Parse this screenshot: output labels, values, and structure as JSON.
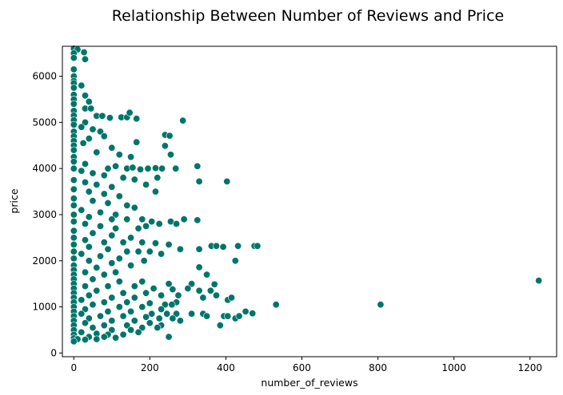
{
  "chart_data": {
    "type": "scatter",
    "title": "Relationship Between Number of Reviews and Price",
    "xlabel": "number_of_reviews",
    "ylabel": "price",
    "xlim": [
      -30,
      1270
    ],
    "ylim": [
      -80,
      6650
    ],
    "xticks": [
      0,
      200,
      400,
      600,
      800,
      1000,
      1200
    ],
    "yticks": [
      0,
      1000,
      2000,
      3000,
      4000,
      5000,
      6000
    ],
    "grid": false,
    "marker_color": "#00756a",
    "marker_edge_color": "#ffffff",
    "series": [
      {
        "points": [
          [
            0,
            6600
          ],
          [
            10,
            6580
          ],
          [
            0,
            6500
          ],
          [
            27,
            6520
          ],
          [
            0,
            6400
          ],
          [
            30,
            6370
          ],
          [
            0,
            6150
          ],
          [
            0,
            6000
          ],
          [
            0,
            5900
          ],
          [
            0,
            5850
          ],
          [
            0,
            5750
          ],
          [
            20,
            5800
          ],
          [
            0,
            5600
          ],
          [
            30,
            5580
          ],
          [
            0,
            5500
          ],
          [
            40,
            5450
          ],
          [
            0,
            5400
          ],
          [
            30,
            5300
          ],
          [
            0,
            5250
          ],
          [
            45,
            5300
          ],
          [
            0,
            5150
          ],
          [
            60,
            5140
          ],
          [
            75,
            5140
          ],
          [
            95,
            5100
          ],
          [
            125,
            5110
          ],
          [
            140,
            5110
          ],
          [
            147,
            5210
          ],
          [
            165,
            5080
          ],
          [
            287,
            5040
          ],
          [
            0,
            5050
          ],
          [
            30,
            5000
          ],
          [
            0,
            4950
          ],
          [
            20,
            4900
          ],
          [
            50,
            4850
          ],
          [
            70,
            4800
          ],
          [
            0,
            4800
          ],
          [
            0,
            4700
          ],
          [
            40,
            4650
          ],
          [
            80,
            4700
          ],
          [
            0,
            4600
          ],
          [
            25,
            4550
          ],
          [
            165,
            4570
          ],
          [
            240,
            4730
          ],
          [
            252,
            4710
          ],
          [
            240,
            4490
          ],
          [
            0,
            4500
          ],
          [
            100,
            4450
          ],
          [
            255,
            4300
          ],
          [
            0,
            4400
          ],
          [
            60,
            4350
          ],
          [
            0,
            4250
          ],
          [
            120,
            4300
          ],
          [
            150,
            4250
          ],
          [
            0,
            4150
          ],
          [
            30,
            4100
          ],
          [
            90,
            4000
          ],
          [
            110,
            4050
          ],
          [
            140,
            4000
          ],
          [
            155,
            4020
          ],
          [
            175,
            3980
          ],
          [
            195,
            4000
          ],
          [
            215,
            4010
          ],
          [
            232,
            4000
          ],
          [
            268,
            4000
          ],
          [
            325,
            4050
          ],
          [
            330,
            3720
          ],
          [
            403,
            3720
          ],
          [
            0,
            4000
          ],
          [
            20,
            3950
          ],
          [
            50,
            3900
          ],
          [
            80,
            3850
          ],
          [
            130,
            3800
          ],
          [
            160,
            3760
          ],
          [
            190,
            3650
          ],
          [
            220,
            3800
          ],
          [
            215,
            3500
          ],
          [
            0,
            3750
          ],
          [
            30,
            3700
          ],
          [
            60,
            3650
          ],
          [
            100,
            3600
          ],
          [
            0,
            3550
          ],
          [
            40,
            3500
          ],
          [
            80,
            3450
          ],
          [
            120,
            3400
          ],
          [
            0,
            3350
          ],
          [
            50,
            3300
          ],
          [
            90,
            3250
          ],
          [
            140,
            3200
          ],
          [
            160,
            3150
          ],
          [
            0,
            3200
          ],
          [
            20,
            3100
          ],
          [
            70,
            3050
          ],
          [
            110,
            3000
          ],
          [
            0,
            3000
          ],
          [
            40,
            2950
          ],
          [
            100,
            2900
          ],
          [
            140,
            2900
          ],
          [
            180,
            2900
          ],
          [
            205,
            2850
          ],
          [
            225,
            2800
          ],
          [
            255,
            2850
          ],
          [
            270,
            2800
          ],
          [
            290,
            2900
          ],
          [
            325,
            2880
          ],
          [
            0,
            2850
          ],
          [
            30,
            2800
          ],
          [
            70,
            2750
          ],
          [
            110,
            2700
          ],
          [
            170,
            2700
          ],
          [
            190,
            2750
          ],
          [
            0,
            2650
          ],
          [
            50,
            2600
          ],
          [
            100,
            2550
          ],
          [
            150,
            2500
          ],
          [
            0,
            2500
          ],
          [
            30,
            2450
          ],
          [
            80,
            2400
          ],
          [
            130,
            2400
          ],
          [
            180,
            2400
          ],
          [
            215,
            2380
          ],
          [
            250,
            2350
          ],
          [
            280,
            2250
          ],
          [
            330,
            2250
          ],
          [
            362,
            2320
          ],
          [
            375,
            2320
          ],
          [
            393,
            2300
          ],
          [
            432,
            2320
          ],
          [
            475,
            2320
          ],
          [
            483,
            2320
          ],
          [
            0,
            2350
          ],
          [
            40,
            2300
          ],
          [
            90,
            2250
          ],
          [
            140,
            2200
          ],
          [
            170,
            2200
          ],
          [
            200,
            2200
          ],
          [
            230,
            2150
          ],
          [
            0,
            2200
          ],
          [
            20,
            2150
          ],
          [
            70,
            2100
          ],
          [
            120,
            2050
          ],
          [
            185,
            2000
          ],
          [
            0,
            2050
          ],
          [
            40,
            2000
          ],
          [
            100,
            1950
          ],
          [
            150,
            1900
          ],
          [
            0,
            1900
          ],
          [
            60,
            1850
          ],
          [
            330,
            1860
          ],
          [
            425,
            2000
          ],
          [
            0,
            1800
          ],
          [
            30,
            1750
          ],
          [
            110,
            1750
          ],
          [
            0,
            1700
          ],
          [
            80,
            1700
          ],
          [
            350,
            1700
          ],
          [
            0,
            1600
          ],
          [
            50,
            1600
          ],
          [
            120,
            1550
          ],
          [
            180,
            1550
          ],
          [
            250,
            1500
          ],
          [
            310,
            1500
          ],
          [
            370,
            1490
          ],
          [
            0,
            1500
          ],
          [
            30,
            1450
          ],
          [
            90,
            1450
          ],
          [
            160,
            1450
          ],
          [
            210,
            1400
          ],
          [
            260,
            1380
          ],
          [
            300,
            1400
          ],
          [
            330,
            1350
          ],
          [
            360,
            1350
          ],
          [
            0,
            1400
          ],
          [
            60,
            1350
          ],
          [
            130,
            1300
          ],
          [
            190,
            1300
          ],
          [
            230,
            1250
          ],
          [
            275,
            1250
          ],
          [
            0,
            1300
          ],
          [
            40,
            1250
          ],
          [
            100,
            1200
          ],
          [
            160,
            1200
          ],
          [
            340,
            1200
          ],
          [
            375,
            1250
          ],
          [
            405,
            1150
          ],
          [
            415,
            1200
          ],
          [
            0,
            1200
          ],
          [
            20,
            1150
          ],
          [
            80,
            1100
          ],
          [
            140,
            1100
          ],
          [
            200,
            1080
          ],
          [
            240,
            1050
          ],
          [
            270,
            1100
          ],
          [
            0,
            1100
          ],
          [
            50,
            1050
          ],
          [
            120,
            1000
          ],
          [
            180,
            1000
          ],
          [
            230,
            950
          ],
          [
            258,
            1050
          ],
          [
            0,
            1000
          ],
          [
            30,
            950
          ],
          [
            90,
            900
          ],
          [
            150,
            900
          ],
          [
            205,
            850
          ],
          [
            245,
            850
          ],
          [
            270,
            850
          ],
          [
            310,
            850
          ],
          [
            340,
            850
          ],
          [
            350,
            800
          ],
          [
            395,
            800
          ],
          [
            405,
            800
          ],
          [
            425,
            750
          ],
          [
            435,
            800
          ],
          [
            452,
            900
          ],
          [
            470,
            860
          ],
          [
            532,
            1050
          ],
          [
            807,
            1050
          ],
          [
            1223,
            1570
          ],
          [
            0,
            900
          ],
          [
            20,
            850
          ],
          [
            70,
            800
          ],
          [
            130,
            800
          ],
          [
            190,
            780
          ],
          [
            225,
            750
          ],
          [
            260,
            750
          ],
          [
            280,
            700
          ],
          [
            385,
            600
          ],
          [
            0,
            800
          ],
          [
            40,
            750
          ],
          [
            100,
            700
          ],
          [
            160,
            700
          ],
          [
            200,
            650
          ],
          [
            230,
            600
          ],
          [
            0,
            700
          ],
          [
            30,
            650
          ],
          [
            80,
            600
          ],
          [
            140,
            600
          ],
          [
            180,
            550
          ],
          [
            220,
            550
          ],
          [
            0,
            600
          ],
          [
            50,
            550
          ],
          [
            100,
            500
          ],
          [
            150,
            500
          ],
          [
            0,
            500
          ],
          [
            20,
            450
          ],
          [
            60,
            420
          ],
          [
            90,
            400
          ],
          [
            130,
            400
          ],
          [
            170,
            450
          ],
          [
            0,
            400
          ],
          [
            40,
            350
          ],
          [
            80,
            350
          ],
          [
            110,
            330
          ],
          [
            250,
            350
          ],
          [
            0,
            320
          ],
          [
            10,
            300
          ],
          [
            30,
            290
          ],
          [
            60,
            300
          ],
          [
            0,
            250
          ]
        ]
      }
    ]
  }
}
